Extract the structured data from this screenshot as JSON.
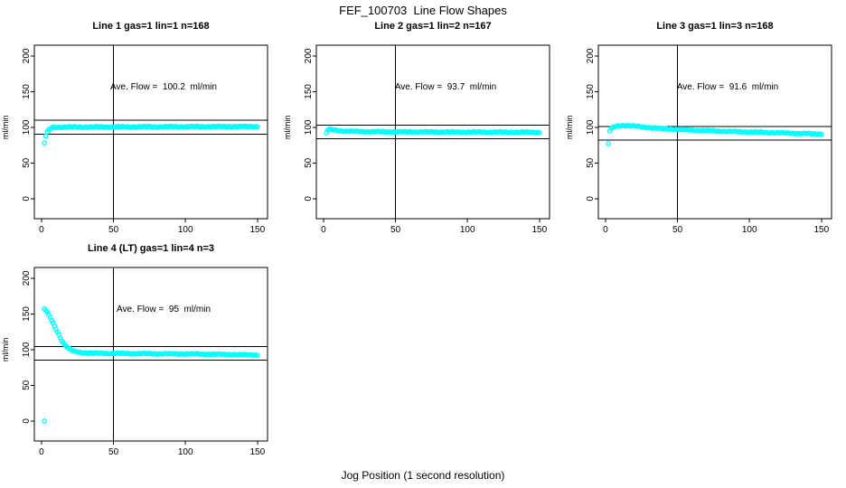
{
  "page": {
    "title": "FEF_100703  Line Flow Shapes",
    "xlabel": "Jog Position (1 second resolution)",
    "ylabel": "ml/min"
  },
  "chart_data": [
    {
      "type": "scatter",
      "title": "Line 1 gas=1 lin=1 n=168",
      "n": 168,
      "ave_flow": 100.2,
      "annotation": "Ave. Flow =  100.2  ml/min",
      "ylabel": "ml/min",
      "xlim": [
        -5,
        157
      ],
      "ylim": [
        -28,
        215
      ],
      "x_ticks": [
        0,
        50,
        100,
        150
      ],
      "y_ticks": [
        0,
        50,
        100,
        150,
        200
      ],
      "vline_x": 50,
      "hlines": [
        110.2,
        90.2
      ],
      "point_color": "#00FFFF",
      "line_color": "#000000",
      "outliers": [
        [
          2,
          78
        ]
      ],
      "points": [
        [
          3,
          88
        ],
        [
          4,
          93
        ],
        [
          5,
          96
        ],
        [
          6,
          98
        ],
        [
          8,
          100
        ],
        [
          15,
          100.3
        ],
        [
          50,
          100.4
        ],
        [
          100,
          100.8
        ],
        [
          150,
          101
        ]
      ]
    },
    {
      "type": "scatter",
      "title": "Line 2 gas=1 lin=2 n=167",
      "n": 167,
      "ave_flow": 93.7,
      "annotation": "Ave. Flow =  93.7  ml/min",
      "ylabel": "ml/min",
      "xlim": [
        -5,
        157
      ],
      "ylim": [
        -28,
        215
      ],
      "x_ticks": [
        0,
        50,
        100,
        150
      ],
      "y_ticks": [
        0,
        50,
        100,
        150,
        200
      ],
      "vline_x": 50,
      "hlines": [
        103.1,
        84.3
      ],
      "point_color": "#00FFFF",
      "line_color": "#000000",
      "outliers": [],
      "points": [
        [
          2,
          92
        ],
        [
          3,
          96
        ],
        [
          4,
          97
        ],
        [
          6,
          96.5
        ],
        [
          10,
          95.5
        ],
        [
          15,
          94.5
        ],
        [
          25,
          94
        ],
        [
          50,
          93.6
        ],
        [
          100,
          93.2
        ],
        [
          150,
          93
        ]
      ]
    },
    {
      "type": "scatter",
      "title": "Line 3 gas=1 lin=3 n=168",
      "n": 168,
      "ave_flow": 91.6,
      "annotation": "Ave. Flow =  91.6  ml/min",
      "ylabel": "ml/min",
      "xlim": [
        -5,
        157
      ],
      "ylim": [
        -28,
        215
      ],
      "x_ticks": [
        0,
        50,
        100,
        150
      ],
      "y_ticks": [
        0,
        50,
        100,
        150,
        200
      ],
      "vline_x": 50,
      "hlines": [
        100.8,
        82.4
      ],
      "point_color": "#00FFFF",
      "line_color": "#000000",
      "outliers": [
        [
          2,
          77
        ]
      ],
      "points": [
        [
          3,
          95
        ],
        [
          4,
          98
        ],
        [
          6,
          100.5
        ],
        [
          9,
          102
        ],
        [
          13,
          102.5
        ],
        [
          18,
          102
        ],
        [
          25,
          100.5
        ],
        [
          40,
          98
        ],
        [
          60,
          96
        ],
        [
          80,
          94.5
        ],
        [
          100,
          93.3
        ],
        [
          120,
          92.2
        ],
        [
          150,
          90.5
        ]
      ]
    },
    {
      "type": "scatter",
      "title": "Line 4 (LT) gas=1 lin=4 n=3",
      "n": 3,
      "ave_flow": 95,
      "annotation": "Ave. Flow =  95  ml/min",
      "ylabel": "ml/min",
      "xlim": [
        -5,
        157
      ],
      "ylim": [
        -28,
        215
      ],
      "x_ticks": [
        0,
        50,
        100,
        150
      ],
      "y_ticks": [
        0,
        50,
        100,
        150,
        200
      ],
      "vline_x": 50,
      "hlines": [
        104.5,
        85.5
      ],
      "point_color": "#00FFFF",
      "line_color": "#000000",
      "outliers": [
        [
          2,
          0
        ]
      ],
      "points": [
        [
          2,
          157
        ],
        [
          3,
          155
        ],
        [
          4,
          152
        ],
        [
          5,
          148.5
        ],
        [
          6,
          145
        ],
        [
          7,
          141
        ],
        [
          8,
          137
        ],
        [
          9,
          133
        ],
        [
          10,
          129
        ],
        [
          11,
          125
        ],
        [
          12,
          121
        ],
        [
          13,
          117
        ],
        [
          14,
          113
        ],
        [
          15,
          110
        ],
        [
          16,
          107
        ],
        [
          17,
          105
        ],
        [
          18,
          103
        ],
        [
          19,
          101.5
        ],
        [
          20,
          100
        ],
        [
          22,
          98
        ],
        [
          24,
          97
        ],
        [
          27,
          96
        ],
        [
          30,
          95.5
        ],
        [
          35,
          95
        ],
        [
          45,
          94.8
        ],
        [
          60,
          94.5
        ],
        [
          80,
          94.2
        ],
        [
          100,
          94
        ],
        [
          120,
          93.5
        ],
        [
          150,
          92.5
        ]
      ]
    }
  ]
}
